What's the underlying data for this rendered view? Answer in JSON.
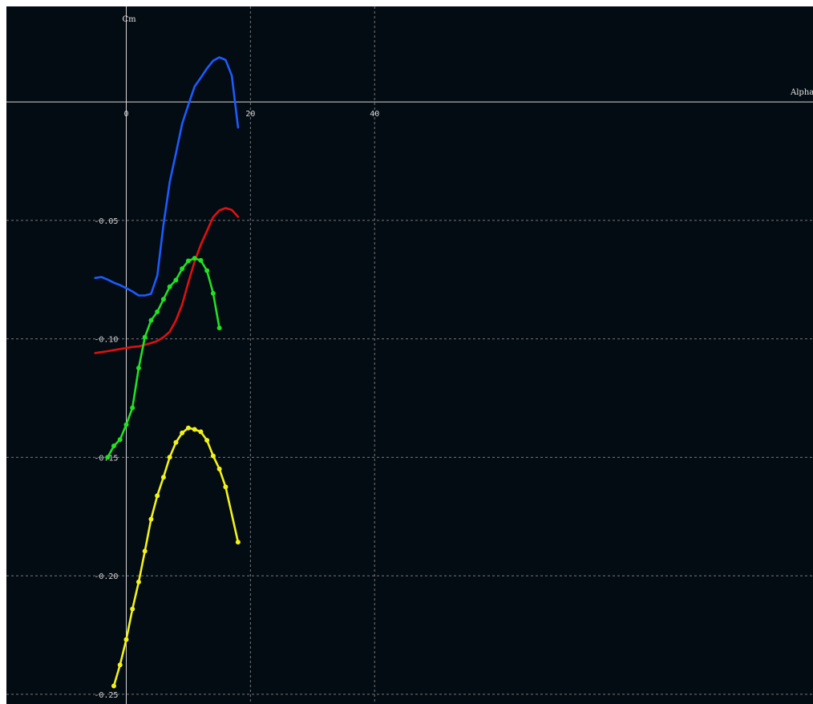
{
  "chart_data": {
    "type": "line",
    "xlabel": "Alpha",
    "ylabel": "Cm",
    "xlim": [
      -19.3,
      110.6
    ],
    "ylim": [
      -0.2541,
      0.0403
    ],
    "x_ticks": [
      0,
      20,
      40
    ],
    "x_tick_labels": [
      "0",
      "20",
      "40"
    ],
    "y_ticks": [
      -0.05,
      -0.1,
      -0.15,
      -0.2,
      -0.25
    ],
    "y_tick_labels": [
      "-0.05",
      "-0.10",
      "-0.15",
      "-0.20",
      "-0.25"
    ],
    "grid": true,
    "background": "#030b13",
    "axis_color": "#d9d9d9",
    "grid_color": "#7a7a7a",
    "series": [
      {
        "color": "#1a5cff",
        "markers": false,
        "points": [
          [
            -5,
            -0.0743
          ],
          [
            -4,
            -0.0739
          ],
          [
            -3,
            -0.075
          ],
          [
            -2,
            -0.0763
          ],
          [
            -1,
            -0.0773
          ],
          [
            0,
            -0.0786
          ],
          [
            1,
            -0.08
          ],
          [
            2,
            -0.0817
          ],
          [
            3,
            -0.0817
          ],
          [
            4,
            -0.081
          ],
          [
            5,
            -0.0733
          ],
          [
            6,
            -0.0518
          ],
          [
            7,
            -0.0338
          ],
          [
            8,
            -0.0218
          ],
          [
            9,
            -0.0092
          ],
          [
            10,
            -0.0013
          ],
          [
            11,
            0.0065
          ],
          [
            12,
            0.0102
          ],
          [
            13,
            0.0141
          ],
          [
            14,
            0.0174
          ],
          [
            15,
            0.0188
          ],
          [
            16,
            0.0177
          ],
          [
            17,
            0.0111
          ],
          [
            18,
            -0.0108
          ]
        ]
      },
      {
        "color": "#e01010",
        "markers": false,
        "points": [
          [
            -5,
            -0.106
          ],
          [
            -3,
            -0.1052
          ],
          [
            -1,
            -0.1043
          ],
          [
            1,
            -0.1034
          ],
          [
            2,
            -0.1032
          ],
          [
            3,
            -0.1025
          ],
          [
            4,
            -0.1018
          ],
          [
            5,
            -0.1009
          ],
          [
            6,
            -0.0993
          ],
          [
            7,
            -0.097
          ],
          [
            8,
            -0.0922
          ],
          [
            9,
            -0.0855
          ],
          [
            10,
            -0.0762
          ],
          [
            11,
            -0.0673
          ],
          [
            12,
            -0.0603
          ],
          [
            13,
            -0.0545
          ],
          [
            14,
            -0.0486
          ],
          [
            15,
            -0.0458
          ],
          [
            16,
            -0.0448
          ],
          [
            17,
            -0.0456
          ],
          [
            18,
            -0.0485
          ]
        ]
      },
      {
        "color": "#22e022",
        "markers": true,
        "points": [
          [
            -3,
            -0.15
          ],
          [
            -2,
            -0.1452
          ],
          [
            -1,
            -0.1425
          ],
          [
            0,
            -0.1362
          ],
          [
            1,
            -0.1291
          ],
          [
            2,
            -0.1123
          ],
          [
            3,
            -0.0993
          ],
          [
            4,
            -0.0922
          ],
          [
            5,
            -0.0886
          ],
          [
            6,
            -0.0833
          ],
          [
            7,
            -0.078
          ],
          [
            8,
            -0.0752
          ],
          [
            9,
            -0.0704
          ],
          [
            10,
            -0.0671
          ],
          [
            11,
            -0.066
          ],
          [
            12,
            -0.0669
          ],
          [
            13,
            -0.0712
          ],
          [
            14,
            -0.0808
          ],
          [
            15,
            -0.0954
          ]
        ]
      },
      {
        "color": "#f2f21a",
        "markers": true,
        "points": [
          [
            -2,
            -0.2465
          ],
          [
            -1,
            -0.2376
          ],
          [
            0,
            -0.2269
          ],
          [
            1,
            -0.214
          ],
          [
            2,
            -0.2026
          ],
          [
            3,
            -0.1896
          ],
          [
            4,
            -0.1761
          ],
          [
            5,
            -0.1662
          ],
          [
            6,
            -0.1584
          ],
          [
            7,
            -0.1499
          ],
          [
            8,
            -0.1437
          ],
          [
            9,
            -0.1397
          ],
          [
            10,
            -0.1376
          ],
          [
            11,
            -0.1382
          ],
          [
            12,
            -0.1392
          ],
          [
            13,
            -0.1428
          ],
          [
            14,
            -0.1494
          ],
          [
            15,
            -0.1549
          ],
          [
            16,
            -0.1625
          ],
          [
            18,
            -0.1858
          ]
        ]
      }
    ]
  }
}
